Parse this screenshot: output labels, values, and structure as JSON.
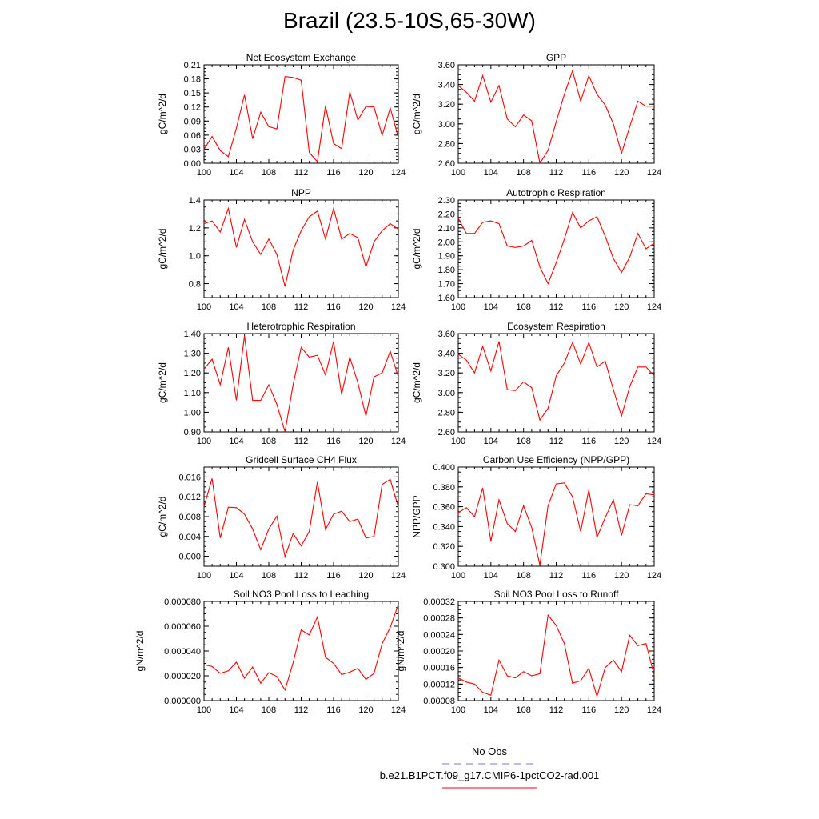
{
  "figure": {
    "title": "Brazil (23.5-10S,65-30W)"
  },
  "legend": {
    "items": [
      {
        "label": "No Obs",
        "color": "#7777dd",
        "dash": true
      },
      {
        "label": "b.e21.B1PCT.f09_g17.CMIP6-1pctCO2-rad.001",
        "color": "#ff0000",
        "dash": false
      }
    ]
  },
  "chart_data": [
    {
      "type": "line",
      "title": "Net Ecosystem Exchange",
      "ylabel": "gC/m^2/d",
      "xlim": [
        100,
        124
      ],
      "ylim": [
        0.0,
        0.21
      ],
      "xticks": [
        "100",
        "104",
        "108",
        "112",
        "116",
        "120",
        "124"
      ],
      "yticks": [
        "0.00",
        "0.03",
        "0.06",
        "0.09",
        "0.12",
        "0.15",
        "0.18",
        "0.21"
      ],
      "x": [
        100,
        101,
        102,
        103,
        104,
        105,
        106,
        107,
        108,
        109,
        110,
        111,
        112,
        113,
        114,
        115,
        116,
        117,
        118,
        119,
        120,
        121,
        122,
        123,
        124
      ],
      "series": [
        {
          "color": "#ff0000",
          "values": [
            0.03,
            0.057,
            0.027,
            0.014,
            0.075,
            0.146,
            0.052,
            0.109,
            0.078,
            0.073,
            0.185,
            0.183,
            0.177,
            0.023,
            0.003,
            0.122,
            0.042,
            0.031,
            0.152,
            0.092,
            0.121,
            0.12,
            0.059,
            0.118,
            0.055
          ]
        }
      ]
    },
    {
      "type": "line",
      "title": "GPP",
      "ylabel": "gC/m^2/d",
      "xlim": [
        100,
        124
      ],
      "ylim": [
        2.6,
        3.6
      ],
      "xticks": [
        "100",
        "104",
        "108",
        "112",
        "116",
        "120",
        "124"
      ],
      "yticks": [
        "2.60",
        "2.80",
        "3.00",
        "3.20",
        "3.40",
        "3.60"
      ],
      "x": [
        100,
        101,
        102,
        103,
        104,
        105,
        106,
        107,
        108,
        109,
        110,
        111,
        112,
        113,
        114,
        115,
        116,
        117,
        118,
        119,
        120,
        121,
        122,
        123,
        124
      ],
      "series": [
        {
          "color": "#ff0000",
          "values": [
            3.39,
            3.32,
            3.23,
            3.49,
            3.22,
            3.39,
            3.05,
            2.97,
            3.09,
            3.03,
            2.6,
            2.73,
            3.02,
            3.3,
            3.54,
            3.23,
            3.49,
            3.3,
            3.19,
            3.0,
            2.7,
            2.97,
            3.23,
            3.18,
            3.18
          ]
        }
      ]
    },
    {
      "type": "line",
      "title": "NPP",
      "ylabel": "gC/m^2/d",
      "xlim": [
        100,
        124
      ],
      "ylim": [
        0.7,
        1.4
      ],
      "xticks": [
        "100",
        "104",
        "108",
        "112",
        "116",
        "120",
        "124"
      ],
      "yticks": [
        "0.8",
        "1.0",
        "1.2",
        "1.4"
      ],
      "x": [
        100,
        101,
        102,
        103,
        104,
        105,
        106,
        107,
        108,
        109,
        110,
        111,
        112,
        113,
        114,
        115,
        116,
        117,
        118,
        119,
        120,
        121,
        122,
        123,
        124
      ],
      "series": [
        {
          "color": "#ff0000",
          "values": [
            1.23,
            1.25,
            1.17,
            1.34,
            1.06,
            1.26,
            1.1,
            1.01,
            1.12,
            1.01,
            0.78,
            1.04,
            1.18,
            1.28,
            1.32,
            1.12,
            1.34,
            1.12,
            1.16,
            1.13,
            0.92,
            1.1,
            1.18,
            1.23,
            1.19
          ]
        }
      ]
    },
    {
      "type": "line",
      "title": "Autotrophic Respiration",
      "ylabel": "gC/m^2/d",
      "xlim": [
        100,
        124
      ],
      "ylim": [
        1.6,
        2.3
      ],
      "xticks": [
        "100",
        "104",
        "108",
        "112",
        "116",
        "120",
        "124"
      ],
      "yticks": [
        "1.60",
        "1.70",
        "1.80",
        "1.90",
        "2.00",
        "2.10",
        "2.20",
        "2.30"
      ],
      "x": [
        100,
        101,
        102,
        103,
        104,
        105,
        106,
        107,
        108,
        109,
        110,
        111,
        112,
        113,
        114,
        115,
        116,
        117,
        118,
        119,
        120,
        121,
        122,
        123,
        124
      ],
      "series": [
        {
          "color": "#ff0000",
          "values": [
            2.17,
            2.06,
            2.06,
            2.14,
            2.15,
            2.13,
            1.97,
            1.96,
            1.97,
            2.01,
            1.82,
            1.7,
            1.85,
            2.02,
            2.21,
            2.1,
            2.15,
            2.18,
            2.04,
            1.88,
            1.78,
            1.89,
            2.06,
            1.95,
            1.99
          ]
        }
      ]
    },
    {
      "type": "line",
      "title": "Heterotrophic Respiration",
      "ylabel": "gC/m^2/d",
      "xlim": [
        100,
        124
      ],
      "ylim": [
        0.9,
        1.4
      ],
      "xticks": [
        "100",
        "104",
        "108",
        "112",
        "116",
        "120",
        "124"
      ],
      "yticks": [
        "0.90",
        "1.00",
        "1.10",
        "1.20",
        "1.30",
        "1.40"
      ],
      "x": [
        100,
        101,
        102,
        103,
        104,
        105,
        106,
        107,
        108,
        109,
        110,
        111,
        112,
        113,
        114,
        115,
        116,
        117,
        118,
        119,
        120,
        121,
        122,
        123,
        124
      ],
      "series": [
        {
          "color": "#ff0000",
          "values": [
            1.22,
            1.27,
            1.14,
            1.33,
            1.06,
            1.39,
            1.06,
            1.06,
            1.14,
            1.04,
            0.9,
            1.14,
            1.33,
            1.28,
            1.29,
            1.19,
            1.36,
            1.09,
            1.28,
            1.15,
            0.98,
            1.18,
            1.2,
            1.31,
            1.18
          ]
        }
      ]
    },
    {
      "type": "line",
      "title": "Ecosystem Respiration",
      "ylabel": "gC/m^2/d",
      "xlim": [
        100,
        124
      ],
      "ylim": [
        2.6,
        3.6
      ],
      "xticks": [
        "100",
        "104",
        "108",
        "112",
        "116",
        "120",
        "124"
      ],
      "yticks": [
        "2.60",
        "2.80",
        "3.00",
        "3.20",
        "3.40",
        "3.60"
      ],
      "x": [
        100,
        101,
        102,
        103,
        104,
        105,
        106,
        107,
        108,
        109,
        110,
        111,
        112,
        113,
        114,
        115,
        116,
        117,
        118,
        119,
        120,
        121,
        122,
        123,
        124
      ],
      "series": [
        {
          "color": "#ff0000",
          "values": [
            3.39,
            3.33,
            3.2,
            3.47,
            3.22,
            3.52,
            3.03,
            3.02,
            3.11,
            3.05,
            2.72,
            2.84,
            3.17,
            3.3,
            3.51,
            3.29,
            3.51,
            3.26,
            3.32,
            3.03,
            2.76,
            3.06,
            3.26,
            3.26,
            3.17
          ]
        }
      ]
    },
    {
      "type": "line",
      "title": "Gridcell Surface CH4 Flux",
      "ylabel": "gC/m^2/d",
      "xlim": [
        100,
        124
      ],
      "ylim": [
        -0.002,
        0.018
      ],
      "xticks": [
        "100",
        "104",
        "108",
        "112",
        "116",
        "120",
        "124"
      ],
      "yticks": [
        "0.000",
        "0.004",
        "0.008",
        "0.012",
        "0.016"
      ],
      "x": [
        100,
        101,
        102,
        103,
        104,
        105,
        106,
        107,
        108,
        109,
        110,
        111,
        112,
        113,
        114,
        115,
        116,
        117,
        118,
        119,
        120,
        121,
        122,
        123,
        124
      ],
      "series": [
        {
          "color": "#ff0000",
          "values": [
            0.01,
            0.0157,
            0.0037,
            0.0099,
            0.0098,
            0.0085,
            0.0055,
            0.0013,
            0.0055,
            0.0081,
            -0.0001,
            0.0046,
            0.0021,
            0.005,
            0.015,
            0.0054,
            0.0085,
            0.0091,
            0.007,
            0.0075,
            0.0037,
            0.004,
            0.0145,
            0.0155,
            0.0099
          ]
        }
      ]
    },
    {
      "type": "line",
      "title": "Carbon Use Efficiency (NPP/GPP)",
      "ylabel": "NPP/GPP",
      "xlim": [
        100,
        124
      ],
      "ylim": [
        0.3,
        0.4
      ],
      "xticks": [
        "100",
        "104",
        "108",
        "112",
        "116",
        "120",
        "124"
      ],
      "yticks": [
        "0.300",
        "0.320",
        "0.340",
        "0.360",
        "0.380",
        "0.400"
      ],
      "x": [
        100,
        101,
        102,
        103,
        104,
        105,
        106,
        107,
        108,
        109,
        110,
        111,
        112,
        113,
        114,
        115,
        116,
        117,
        118,
        119,
        120,
        121,
        122,
        123,
        124
      ],
      "series": [
        {
          "color": "#ff0000",
          "values": [
            0.354,
            0.359,
            0.35,
            0.379,
            0.325,
            0.367,
            0.343,
            0.335,
            0.361,
            0.339,
            0.301,
            0.361,
            0.383,
            0.384,
            0.37,
            0.335,
            0.377,
            0.329,
            0.349,
            0.367,
            0.331,
            0.362,
            0.361,
            0.373,
            0.372
          ]
        }
      ]
    },
    {
      "type": "line",
      "title": "Soil NO3 Pool Loss to Leaching",
      "ylabel": "gN/m^2/d",
      "xlim": [
        100,
        124
      ],
      "ylim": [
        0.0,
        8e-05
      ],
      "xticks": [
        "100",
        "104",
        "108",
        "112",
        "116",
        "120",
        "124"
      ],
      "yticks": [
        "0.000000",
        "0.000020",
        "0.000040",
        "0.000060",
        "0.000080"
      ],
      "x": [
        100,
        101,
        102,
        103,
        104,
        105,
        106,
        107,
        108,
        109,
        110,
        111,
        112,
        113,
        114,
        115,
        116,
        117,
        118,
        119,
        120,
        121,
        122,
        123,
        124
      ],
      "series": [
        {
          "color": "#ff0000",
          "values": [
            2.9e-05,
            2.75e-05,
            2.2e-05,
            2.4e-05,
            3.1e-05,
            1.8e-05,
            2.7e-05,
            1.4e-05,
            2.25e-05,
            1.95e-05,
            8.5e-06,
            3.05e-05,
            5.7e-05,
            5.3e-05,
            6.75e-05,
            3.5e-05,
            3e-05,
            2.1e-05,
            2.3e-05,
            2.6e-05,
            1.7e-05,
            2.2e-05,
            4.6e-05,
            5.9e-05,
            7.75e-05
          ]
        }
      ]
    },
    {
      "type": "line",
      "title": "Soil NO3 Pool Loss to Runoff",
      "ylabel": "gN/m^2/d",
      "xlim": [
        100,
        124
      ],
      "ylim": [
        8e-05,
        0.00032
      ],
      "xticks": [
        "100",
        "104",
        "108",
        "112",
        "116",
        "120",
        "124"
      ],
      "yticks": [
        "0.00008",
        "0.00012",
        "0.00016",
        "0.00020",
        "0.00024",
        "0.00028",
        "0.00032"
      ],
      "x": [
        100,
        101,
        102,
        103,
        104,
        105,
        106,
        107,
        108,
        109,
        110,
        111,
        112,
        113,
        114,
        115,
        116,
        117,
        118,
        119,
        120,
        121,
        122,
        123,
        124
      ],
      "series": [
        {
          "color": "#ff0000",
          "values": [
            0.000135,
            0.000125,
            0.00012,
            0.0001,
            9.3e-05,
            0.000178,
            0.00014,
            0.000135,
            0.00015,
            0.00014,
            0.000145,
            0.000287,
            0.000262,
            0.000218,
            0.000122,
            0.000128,
            0.000158,
            9e-05,
            0.00016,
            0.000178,
            0.00015,
            0.000238,
            0.000213,
            0.000218,
            0.000142
          ]
        }
      ]
    }
  ]
}
